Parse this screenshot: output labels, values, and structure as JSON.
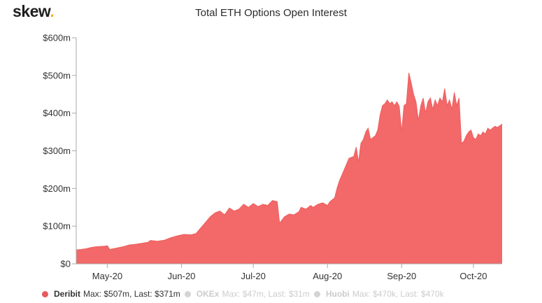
{
  "logo": {
    "text": "skew",
    "dot": "."
  },
  "chart_data": {
    "type": "area",
    "title": "Total ETH Options Open Interest",
    "xlabel": "",
    "ylabel": "",
    "x_start": "2020-04-18",
    "x_end": "2020-10-13",
    "x_ticks": [
      {
        "date": "2020-05-01",
        "label": "May-20"
      },
      {
        "date": "2020-06-01",
        "label": "Jun-20"
      },
      {
        "date": "2020-07-01",
        "label": "Jul-20"
      },
      {
        "date": "2020-08-01",
        "label": "Aug-20"
      },
      {
        "date": "2020-09-01",
        "label": "Sep-20"
      },
      {
        "date": "2020-10-01",
        "label": "Oct-20"
      }
    ],
    "ylim": [
      0,
      600
    ],
    "y_ticks": [
      {
        "value": 0,
        "label": "$0"
      },
      {
        "value": 100,
        "label": "$100m"
      },
      {
        "value": 200,
        "label": "$200m"
      },
      {
        "value": 300,
        "label": "$300m"
      },
      {
        "value": 400,
        "label": "$400m"
      },
      {
        "value": 500,
        "label": "$500m"
      },
      {
        "value": 600,
        "label": "$600m"
      }
    ],
    "grid": false,
    "legend_position": "bottom",
    "series": [
      {
        "name": "Deribit",
        "color": "#f36868",
        "summary": "Max: $507m, Last: $371m",
        "points": [
          [
            "2020-04-18",
            37
          ],
          [
            "2020-04-20",
            38
          ],
          [
            "2020-04-22",
            40
          ],
          [
            "2020-04-24",
            43
          ],
          [
            "2020-04-26",
            45
          ],
          [
            "2020-04-28",
            46
          ],
          [
            "2020-04-30",
            47
          ],
          [
            "2020-05-01",
            48
          ],
          [
            "2020-05-02",
            38
          ],
          [
            "2020-05-05",
            42
          ],
          [
            "2020-05-08",
            46
          ],
          [
            "2020-05-10",
            50
          ],
          [
            "2020-05-13",
            52
          ],
          [
            "2020-05-16",
            55
          ],
          [
            "2020-05-18",
            57
          ],
          [
            "2020-05-19",
            62
          ],
          [
            "2020-05-22",
            60
          ],
          [
            "2020-05-25",
            63
          ],
          [
            "2020-05-27",
            68
          ],
          [
            "2020-05-30",
            74
          ],
          [
            "2020-06-02",
            78
          ],
          [
            "2020-06-05",
            77
          ],
          [
            "2020-06-07",
            80
          ],
          [
            "2020-06-09",
            95
          ],
          [
            "2020-06-11",
            110
          ],
          [
            "2020-06-13",
            125
          ],
          [
            "2020-06-15",
            135
          ],
          [
            "2020-06-17",
            140
          ],
          [
            "2020-06-19",
            130
          ],
          [
            "2020-06-21",
            148
          ],
          [
            "2020-06-23",
            140
          ],
          [
            "2020-06-25",
            145
          ],
          [
            "2020-06-27",
            158
          ],
          [
            "2020-06-29",
            150
          ],
          [
            "2020-07-01",
            160
          ],
          [
            "2020-07-03",
            152
          ],
          [
            "2020-07-05",
            158
          ],
          [
            "2020-07-07",
            155
          ],
          [
            "2020-07-09",
            168
          ],
          [
            "2020-07-11",
            165
          ],
          [
            "2020-07-12",
            108
          ],
          [
            "2020-07-14",
            125
          ],
          [
            "2020-07-16",
            132
          ],
          [
            "2020-07-18",
            130
          ],
          [
            "2020-07-20",
            138
          ],
          [
            "2020-07-21",
            150
          ],
          [
            "2020-07-23",
            145
          ],
          [
            "2020-07-25",
            155
          ],
          [
            "2020-07-26",
            150
          ],
          [
            "2020-07-28",
            158
          ],
          [
            "2020-07-30",
            162
          ],
          [
            "2020-08-01",
            155
          ],
          [
            "2020-08-02",
            165
          ],
          [
            "2020-08-04",
            175
          ],
          [
            "2020-08-05",
            200
          ],
          [
            "2020-08-06",
            220
          ],
          [
            "2020-08-08",
            250
          ],
          [
            "2020-08-10",
            280
          ],
          [
            "2020-08-12",
            285
          ],
          [
            "2020-08-13",
            310
          ],
          [
            "2020-08-14",
            270
          ],
          [
            "2020-08-15",
            320
          ],
          [
            "2020-08-16",
            330
          ],
          [
            "2020-08-17",
            350
          ],
          [
            "2020-08-18",
            360
          ],
          [
            "2020-08-19",
            330
          ],
          [
            "2020-08-21",
            340
          ],
          [
            "2020-08-22",
            355
          ],
          [
            "2020-08-23",
            395
          ],
          [
            "2020-08-24",
            420
          ],
          [
            "2020-08-25",
            425
          ],
          [
            "2020-08-26",
            435
          ],
          [
            "2020-08-27",
            425
          ],
          [
            "2020-08-28",
            430
          ],
          [
            "2020-08-29",
            420
          ],
          [
            "2020-08-30",
            430
          ],
          [
            "2020-08-31",
            418
          ],
          [
            "2020-09-01",
            350
          ],
          [
            "2020-09-02",
            420
          ],
          [
            "2020-09-03",
            425
          ],
          [
            "2020-09-04",
            507
          ],
          [
            "2020-09-05",
            480
          ],
          [
            "2020-09-06",
            450
          ],
          [
            "2020-09-07",
            430
          ],
          [
            "2020-09-08",
            380
          ],
          [
            "2020-09-09",
            420
          ],
          [
            "2020-09-10",
            440
          ],
          [
            "2020-09-11",
            400
          ],
          [
            "2020-09-12",
            430
          ],
          [
            "2020-09-13",
            440
          ],
          [
            "2020-09-14",
            410
          ],
          [
            "2020-09-15",
            435
          ],
          [
            "2020-09-16",
            420
          ],
          [
            "2020-09-17",
            440
          ],
          [
            "2020-09-18",
            430
          ],
          [
            "2020-09-19",
            465
          ],
          [
            "2020-09-20",
            420
          ],
          [
            "2020-09-21",
            435
          ],
          [
            "2020-09-22",
            410
          ],
          [
            "2020-09-23",
            455
          ],
          [
            "2020-09-24",
            420
          ],
          [
            "2020-09-25",
            440
          ],
          [
            "2020-09-26",
            320
          ],
          [
            "2020-09-27",
            325
          ],
          [
            "2020-09-28",
            340
          ],
          [
            "2020-09-29",
            350
          ],
          [
            "2020-09-30",
            355
          ],
          [
            "2020-10-01",
            335
          ],
          [
            "2020-10-02",
            330
          ],
          [
            "2020-10-03",
            345
          ],
          [
            "2020-10-04",
            340
          ],
          [
            "2020-10-05",
            350
          ],
          [
            "2020-10-06",
            345
          ],
          [
            "2020-10-07",
            360
          ],
          [
            "2020-10-08",
            355
          ],
          [
            "2020-10-10",
            365
          ],
          [
            "2020-10-11",
            362
          ],
          [
            "2020-10-13",
            371
          ]
        ]
      }
    ],
    "legend": [
      {
        "name": "Deribit",
        "stats": "Max: $507m, Last: $371m",
        "color": "#e85a5a",
        "active": true
      },
      {
        "name": "OKEx",
        "stats": "Max: $47m, Last: $31m",
        "color": "#d4d4d4",
        "active": false
      },
      {
        "name": "Huobi",
        "stats": "Max: $470k, Last: $470k",
        "color": "#d4d4d4",
        "active": false
      }
    ]
  }
}
